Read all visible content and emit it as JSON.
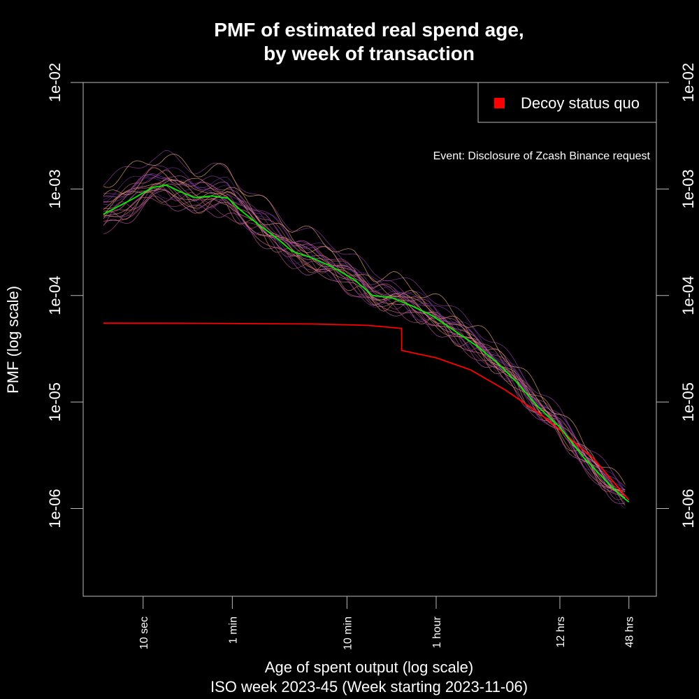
{
  "chart_data": {
    "type": "line",
    "title_line1": "PMF of estimated real spend age,",
    "title_line2": "by week of transaction",
    "xlabel": "Age of spent output (log scale)",
    "subtitle": "ISO week 2023-45 (Week starting 2023-11-06)",
    "ylabel": "PMF (log scale)",
    "x_scale": "log",
    "y_scale": "log",
    "xlim_seconds": [
      3,
      300000
    ],
    "ylim": [
      1.5e-07,
      0.01
    ],
    "x_ticks": [
      {
        "label": "10 sec",
        "seconds": 10
      },
      {
        "label": "1 min",
        "seconds": 60
      },
      {
        "label": "10 min",
        "seconds": 600
      },
      {
        "label": "1 hour",
        "seconds": 3600
      },
      {
        "label": "12 hrs",
        "seconds": 43200
      },
      {
        "label": "48 hrs",
        "seconds": 172800
      }
    ],
    "y_ticks": [
      {
        "label": "1e-06",
        "value": 1e-06
      },
      {
        "label": "1e-05",
        "value": 1e-05
      },
      {
        "label": "1e-04",
        "value": 0.0001
      },
      {
        "label": "1e-03",
        "value": 0.001
      },
      {
        "label": "1e-02",
        "value": 0.01
      }
    ],
    "legend": {
      "label": "Decoy status quo",
      "color": "#ff0000",
      "position": "top-right"
    },
    "annotation": "Event: Disclosure of Zcash Binance request",
    "grid": false,
    "series": [
      {
        "name": "Decoy status quo",
        "color": "#ff0000",
        "points": [
          [
            4.5,
            5.5e-05
          ],
          [
            30,
            5.48e-05
          ],
          [
            300,
            5.4e-05
          ],
          [
            900,
            5.25e-05
          ],
          [
            1500,
            5e-05
          ],
          [
            1800,
            4.9e-05
          ],
          [
            1800,
            3.05e-05
          ],
          [
            3600,
            2.6e-05
          ],
          [
            7200,
            2e-05
          ],
          [
            14400,
            1.3e-05
          ],
          [
            28800,
            7.8e-06
          ],
          [
            43200,
            5.5e-06
          ],
          [
            86400,
            2.9e-06
          ],
          [
            172800,
            1.2e-06
          ]
        ]
      },
      {
        "color": "#00ee00",
        "points": [
          [
            4.5,
            0.00058
          ],
          [
            8,
            0.0008
          ],
          [
            12,
            0.00103
          ],
          [
            16,
            0.00109
          ],
          [
            20,
            0.00097
          ],
          [
            28,
            0.00083
          ],
          [
            40,
            0.00086
          ],
          [
            55,
            0.00082
          ],
          [
            70,
            0.00064
          ],
          [
            100,
            0.00047
          ],
          [
            140,
            0.00036
          ],
          [
            200,
            0.00026
          ],
          [
            300,
            0.000225
          ],
          [
            450,
            0.000185
          ],
          [
            700,
            0.00014
          ],
          [
            1000,
            0.0001
          ],
          [
            1500,
            9.5e-05
          ],
          [
            2200,
            8e-05
          ],
          [
            3300,
            6.5e-05
          ],
          [
            5000,
            4.8e-05
          ],
          [
            8000,
            3.4e-05
          ],
          [
            12000,
            2.4e-05
          ],
          [
            18000,
            1.55e-05
          ],
          [
            28000,
            9e-06
          ],
          [
            43200,
            5.8e-06
          ],
          [
            70000,
            3e-06
          ],
          [
            110000,
            1.8e-06
          ],
          [
            150000,
            1.3e-06
          ],
          [
            172800,
            1.15e-06
          ]
        ]
      }
    ],
    "background_series_count": 24
  }
}
